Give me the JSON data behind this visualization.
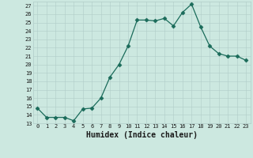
{
  "x": [
    0,
    1,
    2,
    3,
    4,
    5,
    6,
    7,
    8,
    9,
    10,
    11,
    12,
    13,
    14,
    15,
    16,
    17,
    18,
    19,
    20,
    21,
    22,
    23
  ],
  "y": [
    14.8,
    13.7,
    13.7,
    13.7,
    13.3,
    14.7,
    14.8,
    16.0,
    18.5,
    20.0,
    22.2,
    25.3,
    25.3,
    25.2,
    25.5,
    24.6,
    26.2,
    27.2,
    24.5,
    22.2,
    21.3,
    21.0,
    21.0,
    20.5
  ],
  "line_color": "#1a6b5a",
  "marker": "D",
  "marker_size": 2.5,
  "xlabel": "Humidex (Indice chaleur)",
  "xlim": [
    -0.5,
    23.5
  ],
  "ylim": [
    13,
    27.5
  ],
  "yticks": [
    13,
    14,
    15,
    16,
    17,
    18,
    19,
    20,
    21,
    22,
    23,
    24,
    25,
    26,
    27
  ],
  "xticks": [
    0,
    1,
    2,
    3,
    4,
    5,
    6,
    7,
    8,
    9,
    10,
    11,
    12,
    13,
    14,
    15,
    16,
    17,
    18,
    19,
    20,
    21,
    22,
    23
  ],
  "bg_color": "#cce8e0",
  "grid_color": "#b0ccc8",
  "font_color": "#1a1a1a",
  "tick_fontsize": 5.0,
  "xlabel_fontsize": 7.0,
  "linewidth": 0.9
}
